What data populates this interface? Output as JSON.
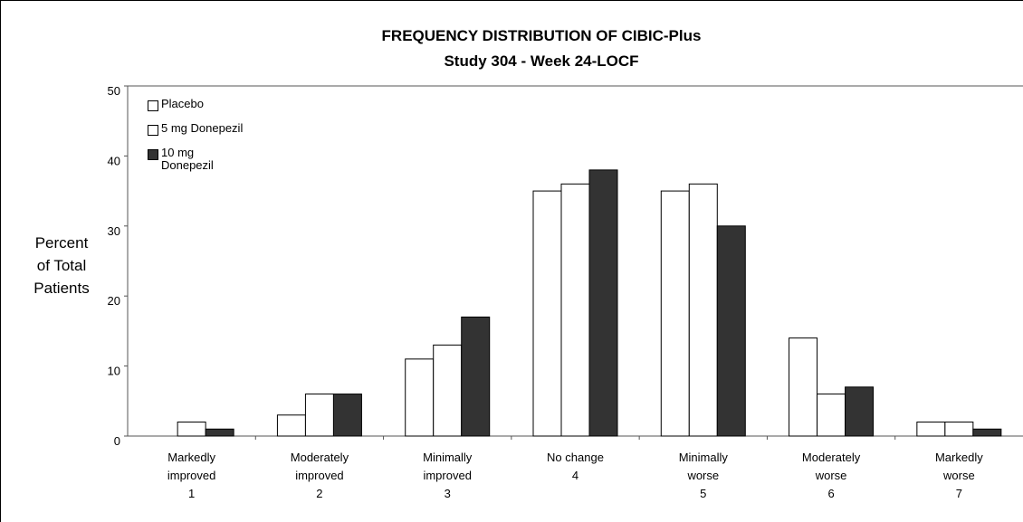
{
  "chart_data": {
    "type": "bar",
    "title": "FREQUENCY DISTRIBUTION OF CIBIC-Plus",
    "subtitle": "Study 304 - Week 24-LOCF",
    "ylabel": "Percent of Total Patients",
    "categories": [
      [
        "Markedly",
        "improved",
        "1"
      ],
      [
        "Moderately",
        "improved",
        "2"
      ],
      [
        "Minimally",
        "improved",
        "3"
      ],
      [
        "No change",
        "4"
      ],
      [
        "Minimally",
        "worse",
        "5"
      ],
      [
        "Moderately",
        "worse",
        "6"
      ],
      [
        "Markedly",
        "worse",
        "7"
      ]
    ],
    "series": [
      {
        "name": "Placebo",
        "color": "#ffffff",
        "values": [
          0,
          3,
          11,
          35,
          35,
          14,
          2
        ]
      },
      {
        "name": "5 mg Donepezil",
        "color": "#ffffff",
        "values": [
          2,
          6,
          13,
          36,
          36,
          6,
          2
        ]
      },
      {
        "name": "10 mg Donepezil",
        "color": "#333333",
        "values": [
          1,
          6,
          17,
          38,
          30,
          7,
          1
        ]
      }
    ],
    "ylim": [
      0,
      50
    ],
    "yticks": [
      0,
      10,
      20,
      30,
      40,
      50
    ],
    "grid": false,
    "legend": "top-left"
  }
}
